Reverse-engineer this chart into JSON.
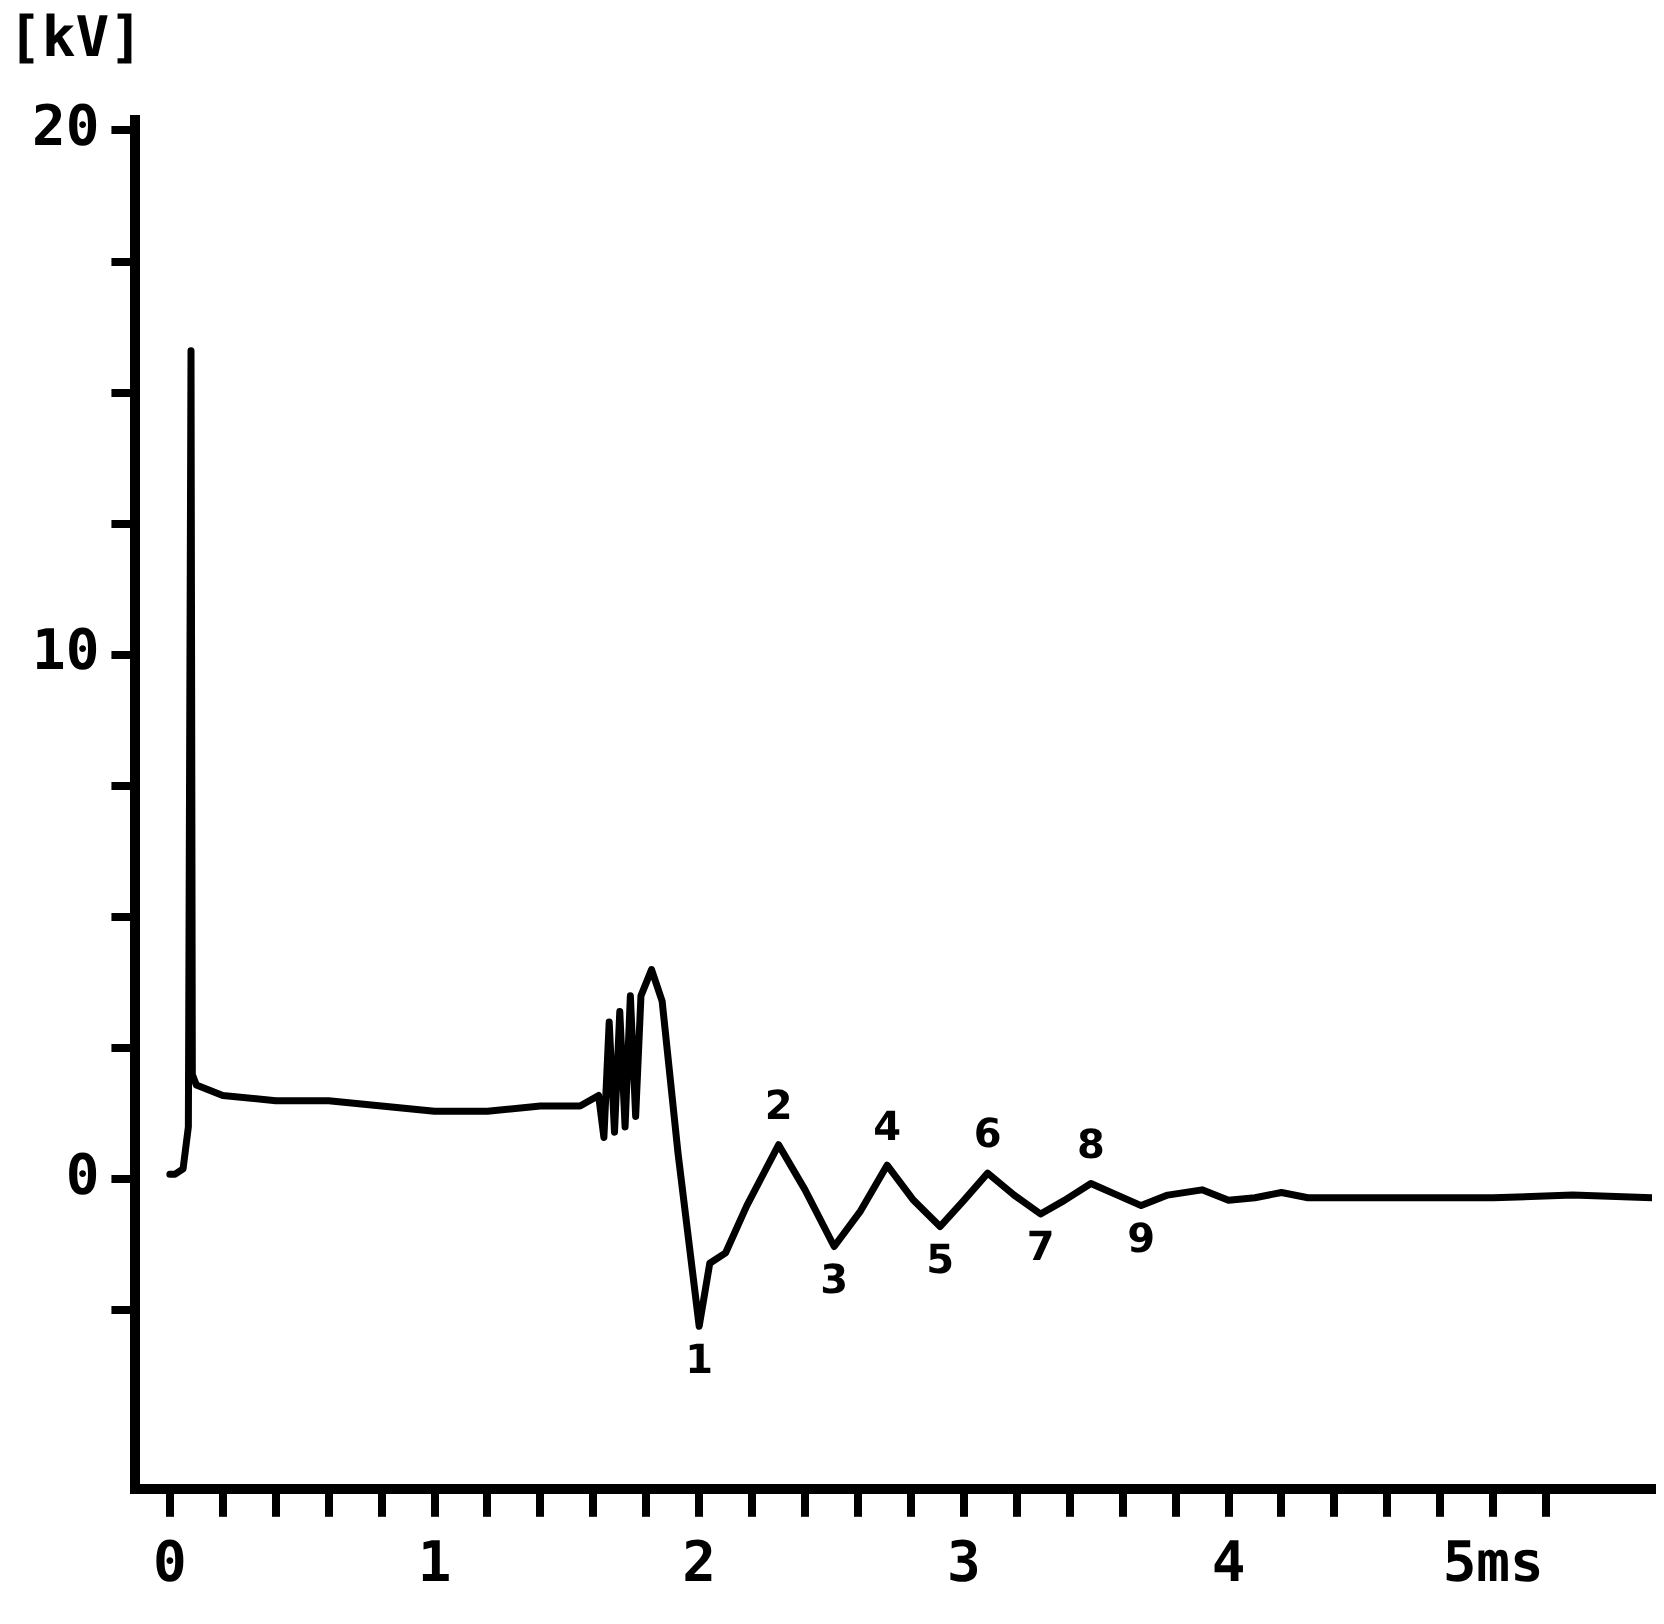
{
  "chart_data": {
    "type": "line",
    "ylabel": "[kV]",
    "x": [
      0,
      0.02,
      0.05,
      0.07,
      0.08,
      0.085,
      0.1,
      0.2,
      0.4,
      0.6,
      0.8,
      1.0,
      1.2,
      1.4,
      1.55,
      1.62,
      1.64,
      1.66,
      1.68,
      1.7,
      1.72,
      1.74,
      1.76,
      1.78,
      1.82,
      1.86,
      1.92,
      2.0,
      2.04,
      2.1,
      2.18,
      2.3,
      2.4,
      2.51,
      2.61,
      2.71,
      2.81,
      2.91,
      3.0,
      3.09,
      3.19,
      3.29,
      3.38,
      3.48,
      3.58,
      3.67,
      3.77,
      3.9,
      4.0,
      4.1,
      4.2,
      4.3,
      4.6,
      5.0,
      5.3,
      5.6
    ],
    "series": [
      {
        "color": "#000000",
        "values": [
          0.1,
          0.1,
          0.2,
          1.0,
          15.8,
          2.0,
          1.8,
          1.6,
          1.5,
          1.5,
          1.4,
          1.3,
          1.3,
          1.4,
          1.4,
          1.6,
          0.8,
          3.0,
          0.9,
          3.2,
          1.0,
          3.5,
          1.2,
          3.5,
          4.0,
          3.4,
          0.5,
          -2.8,
          -1.6,
          -1.4,
          -0.5,
          0.66,
          -0.2,
          -1.28,
          -0.6,
          0.27,
          -0.4,
          -0.9,
          -0.4,
          0.12,
          -0.3,
          -0.66,
          -0.4,
          -0.08,
          -0.3,
          -0.5,
          -0.3,
          -0.2,
          -0.4,
          -0.35,
          -0.25,
          -0.35,
          -0.35,
          -0.35,
          -0.3,
          -0.35
        ]
      }
    ],
    "xlim": [
      -0.13,
      5.6
    ],
    "ylim": [
      -5.9,
      20.2
    ],
    "xticks": [
      0,
      {
        "value": 0.2,
        "label": null
      },
      {
        "value": 0.4,
        "label": null
      },
      {
        "value": 0.6,
        "label": null
      },
      {
        "value": 0.8,
        "label": null
      },
      1,
      {
        "value": 1.2,
        "label": null
      },
      {
        "value": 1.4,
        "label": null
      },
      {
        "value": 1.6,
        "label": null
      },
      {
        "value": 1.8,
        "label": null
      },
      2,
      {
        "value": 2.2,
        "label": null
      },
      {
        "value": 2.4,
        "label": null
      },
      {
        "value": 2.6,
        "label": null
      },
      {
        "value": 2.8,
        "label": null
      },
      3,
      {
        "value": 3.2,
        "label": null
      },
      {
        "value": 3.4,
        "label": null
      },
      {
        "value": 3.6,
        "label": null
      },
      {
        "value": 3.8,
        "label": null
      },
      4,
      {
        "value": 4.2,
        "label": null
      },
      {
        "value": 4.4,
        "label": null
      },
      {
        "value": 4.6,
        "label": null
      },
      {
        "value": 4.8,
        "label": null
      },
      {
        "value": 5,
        "label": "5ms"
      },
      {
        "value": 5.2,
        "label": null
      }
    ],
    "yticks": [
      {
        "value": -2.5,
        "label": null
      },
      0,
      {
        "value": 2.5,
        "label": null
      },
      {
        "value": 5,
        "label": null
      },
      {
        "value": 7.5,
        "label": null
      },
      10,
      {
        "value": 12.5,
        "label": null
      },
      {
        "value": 15,
        "label": null
      },
      {
        "value": 17.5,
        "label": null
      },
      20
    ],
    "annotations": [
      {
        "text": "1",
        "x": 2.0,
        "y": -2.8
      },
      {
        "text": "2",
        "x": 2.3,
        "y": 0.66
      },
      {
        "text": "3",
        "x": 2.51,
        "y": -1.28
      },
      {
        "text": "4",
        "x": 2.71,
        "y": 0.27
      },
      {
        "text": "5",
        "x": 2.91,
        "y": -0.9
      },
      {
        "text": "6",
        "x": 3.09,
        "y": 0.12
      },
      {
        "text": "7",
        "x": 3.29,
        "y": -0.66
      },
      {
        "text": "8",
        "x": 3.48,
        "y": -0.08
      },
      {
        "text": "9",
        "x": 3.67,
        "y": -0.5
      }
    ],
    "grid": false,
    "legend": false,
    "marker": "none",
    "line_style": "solid"
  }
}
